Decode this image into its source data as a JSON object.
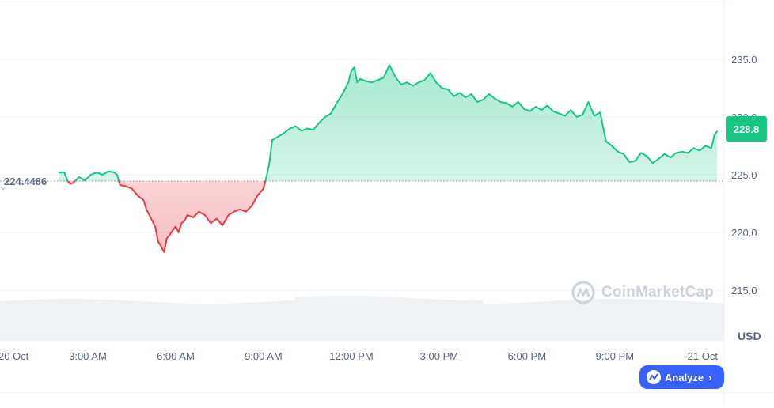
{
  "chart_data": {
    "type": "area",
    "baseline": 224.4486,
    "last_value": "228.8",
    "currency_label": "USD",
    "y_ticks": [
      "235.0",
      "230.0",
      "225.0",
      "220.0",
      "215.0"
    ],
    "y_tick_values": [
      235,
      230,
      225,
      220,
      215
    ],
    "ylim": [
      215,
      240
    ],
    "x_ticks": [
      "20 Oct",
      "3:00 AM",
      "6:00 AM",
      "9:00 AM",
      "12:00 PM",
      "3:00 PM",
      "6:00 PM",
      "9:00 PM",
      "21 Oct"
    ],
    "x_tick_hours": [
      0,
      3,
      6,
      9,
      12,
      15,
      18,
      21,
      24
    ],
    "xlim_hours": [
      0,
      24.6
    ],
    "colors": {
      "up": "#16c784",
      "down": "#ea3943",
      "grid": "#eff2f5",
      "text": "#58667e"
    },
    "series": [
      {
        "x": [
          2.0,
          2.2,
          2.3,
          2.4,
          2.5,
          2.7,
          2.9,
          3.1,
          3.3,
          3.5,
          3.7,
          3.9,
          4.0,
          4.1,
          4.3,
          4.5,
          4.7,
          4.9,
          5.0,
          5.1,
          5.2,
          5.3,
          5.4,
          5.5,
          5.6,
          5.7,
          5.8,
          5.9,
          6.0,
          6.1,
          6.2,
          6.3,
          6.4,
          6.6,
          6.8,
          7.0,
          7.2,
          7.4,
          7.6,
          7.8,
          8.0,
          8.2,
          8.4,
          8.6,
          8.8,
          9.0,
          9.1,
          9.2,
          9.3,
          9.5,
          9.7,
          9.9,
          10.1,
          10.3,
          10.5,
          10.7,
          10.9,
          11.1,
          11.3,
          11.5,
          11.7,
          11.9,
          12.0,
          12.1,
          12.2,
          12.3,
          12.5,
          12.7,
          12.9,
          13.1,
          13.3,
          13.5,
          13.7,
          13.9,
          14.1,
          14.3,
          14.5,
          14.7,
          14.9,
          15.1,
          15.3,
          15.5,
          15.7,
          15.9,
          16.1,
          16.3,
          16.5,
          16.7,
          16.9,
          17.1,
          17.3,
          17.5,
          17.7,
          17.9,
          18.1,
          18.3,
          18.5,
          18.7,
          18.9,
          19.1,
          19.3,
          19.5,
          19.7,
          19.9,
          20.1,
          20.3,
          20.5,
          20.7,
          20.9,
          21.1,
          21.3,
          21.5,
          21.7,
          21.9,
          22.1,
          22.3,
          22.5,
          22.7,
          22.9,
          23.1,
          23.3,
          23.5,
          23.7,
          23.9,
          24.1,
          24.3,
          24.4,
          24.5
        ],
        "y": [
          225.2,
          225.2,
          224.5,
          224.2,
          224.3,
          224.8,
          224.5,
          225.0,
          225.2,
          225.0,
          225.3,
          225.2,
          225.0,
          224.1,
          224.0,
          223.8,
          223.2,
          222.8,
          222.0,
          221.5,
          221.0,
          220.5,
          219.2,
          218.8,
          218.3,
          219.5,
          219.8,
          220.2,
          220.5,
          220.0,
          220.8,
          221.0,
          221.5,
          221.3,
          221.8,
          221.5,
          220.8,
          221.2,
          220.6,
          221.5,
          221.8,
          222.0,
          221.8,
          222.3,
          223.2,
          223.8,
          224.8,
          226.0,
          228.0,
          228.3,
          228.6,
          229.0,
          229.2,
          228.8,
          229.0,
          228.9,
          229.5,
          230.0,
          230.3,
          231.2,
          232.0,
          233.0,
          234.0,
          234.3,
          233.0,
          233.3,
          233.1,
          233.0,
          233.2,
          233.4,
          234.5,
          233.5,
          232.8,
          233.0,
          232.7,
          233.0,
          233.2,
          233.8,
          233.0,
          232.5,
          232.4,
          231.8,
          232.1,
          231.7,
          232.0,
          231.3,
          231.5,
          232.0,
          231.6,
          231.3,
          231.2,
          230.9,
          231.3,
          230.7,
          230.5,
          230.9,
          230.6,
          231.0,
          230.5,
          230.3,
          230.1,
          230.6,
          230.0,
          230.2,
          231.3,
          230.1,
          230.4,
          227.9,
          227.5,
          227.0,
          226.8,
          226.1,
          226.2,
          226.9,
          226.6,
          226.0,
          226.4,
          226.8,
          226.5,
          226.9,
          227.0,
          226.9,
          227.3,
          227.1,
          227.5,
          227.3,
          228.4,
          228.8
        ]
      }
    ]
  },
  "watermark": {
    "text": "CoinMarketCap"
  },
  "analyze_button": {
    "label": "Analyze"
  }
}
